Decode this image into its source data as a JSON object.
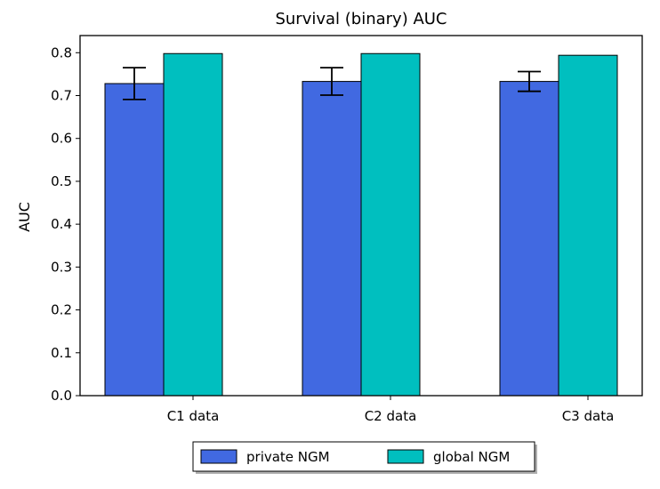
{
  "chart_data": {
    "type": "bar",
    "title": "Survival (binary) AUC",
    "xlabel": "",
    "ylabel": "AUC",
    "categories": [
      "C1 data",
      "C2 data",
      "C3 data"
    ],
    "series": [
      {
        "name": "private NGM",
        "color": "#4169e1",
        "values": [
          0.728,
          0.733,
          0.733
        ],
        "error": [
          0.037,
          0.032,
          0.023
        ]
      },
      {
        "name": "global NGM",
        "color": "#00bfbf",
        "values": [
          0.798,
          0.798,
          0.794
        ]
      }
    ],
    "ylim": [
      0,
      0.84
    ],
    "yticks": [
      "0.0",
      "0.1",
      "0.2",
      "0.3",
      "0.4",
      "0.5",
      "0.6",
      "0.7",
      "0.8"
    ],
    "grid": false,
    "legend": {
      "placement": "bottom-center",
      "entries": [
        "private NGM",
        "global NGM"
      ]
    }
  }
}
